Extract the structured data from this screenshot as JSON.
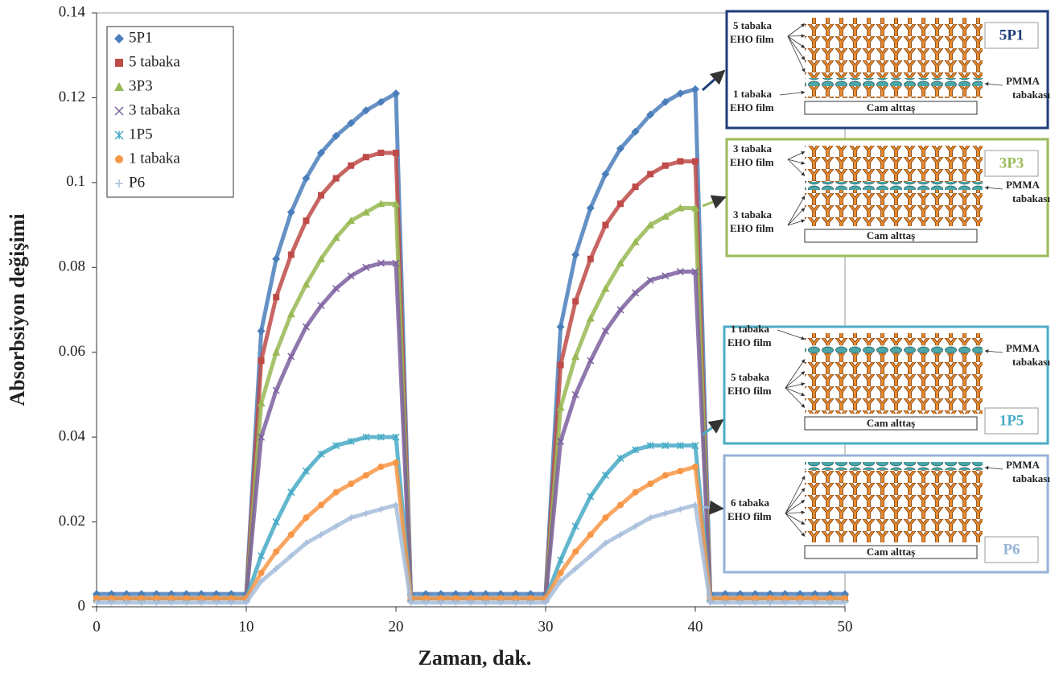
{
  "chart_data": {
    "type": "scatter",
    "x_label": "Zaman, dak.",
    "y_label": "Absorbsiyon değişimi",
    "xlim": [
      0,
      50
    ],
    "xticks": [
      0,
      10,
      20,
      30,
      40,
      50
    ],
    "ylim": [
      0,
      0.14
    ],
    "yticks": [
      0,
      0.02,
      0.04,
      0.06,
      0.08,
      0.1,
      0.12,
      0.14
    ],
    "legend": "upper left",
    "x": [
      0,
      1,
      2,
      3,
      4,
      5,
      6,
      7,
      8,
      9,
      10,
      11,
      12,
      13,
      14,
      15,
      16,
      17,
      18,
      19,
      20,
      21,
      22,
      23,
      24,
      25,
      26,
      27,
      28,
      29,
      30,
      31,
      32,
      33,
      34,
      35,
      36,
      37,
      38,
      39,
      40,
      41,
      42,
      43,
      44,
      45,
      46,
      47,
      48,
      49,
      50
    ],
    "series": [
      {
        "name": "5P1",
        "color": "#4a7ebb",
        "marker": "diamond",
        "values": [
          0.003,
          0.003,
          0.003,
          0.003,
          0.003,
          0.003,
          0.003,
          0.003,
          0.003,
          0.003,
          0.003,
          0.065,
          0.082,
          0.093,
          0.101,
          0.107,
          0.111,
          0.114,
          0.117,
          0.119,
          0.121,
          0.003,
          0.003,
          0.003,
          0.003,
          0.003,
          0.003,
          0.003,
          0.003,
          0.003,
          0.003,
          0.066,
          0.083,
          0.094,
          0.102,
          0.108,
          0.112,
          0.116,
          0.119,
          0.121,
          0.122,
          0.003,
          0.003,
          0.003,
          0.003,
          0.003,
          0.003,
          0.003,
          0.003,
          0.003,
          0.003
        ]
      },
      {
        "name": "5 tabaka",
        "color": "#be4b48",
        "marker": "square",
        "values": [
          0.002,
          0.002,
          0.002,
          0.002,
          0.002,
          0.002,
          0.002,
          0.002,
          0.002,
          0.002,
          0.002,
          0.058,
          0.073,
          0.083,
          0.091,
          0.097,
          0.101,
          0.104,
          0.106,
          0.107,
          0.107,
          0.002,
          0.002,
          0.002,
          0.002,
          0.002,
          0.002,
          0.002,
          0.002,
          0.002,
          0.002,
          0.057,
          0.072,
          0.082,
          0.09,
          0.095,
          0.099,
          0.102,
          0.104,
          0.105,
          0.105,
          0.002,
          0.002,
          0.002,
          0.002,
          0.002,
          0.002,
          0.002,
          0.002,
          0.002,
          0.002
        ]
      },
      {
        "name": "3P3",
        "color": "#98b954",
        "marker": "triangle",
        "values": [
          0.002,
          0.002,
          0.002,
          0.002,
          0.002,
          0.002,
          0.002,
          0.002,
          0.002,
          0.002,
          0.002,
          0.048,
          0.06,
          0.069,
          0.076,
          0.082,
          0.087,
          0.091,
          0.093,
          0.095,
          0.095,
          0.002,
          0.002,
          0.002,
          0.002,
          0.002,
          0.002,
          0.002,
          0.002,
          0.002,
          0.002,
          0.047,
          0.059,
          0.068,
          0.075,
          0.081,
          0.086,
          0.09,
          0.092,
          0.094,
          0.094,
          0.002,
          0.002,
          0.002,
          0.002,
          0.002,
          0.002,
          0.002,
          0.002,
          0.002,
          0.002
        ]
      },
      {
        "name": "3 tabaka",
        "color": "#7d60a0",
        "marker": "x",
        "values": [
          0.002,
          0.002,
          0.002,
          0.002,
          0.002,
          0.002,
          0.002,
          0.002,
          0.002,
          0.002,
          0.002,
          0.04,
          0.051,
          0.059,
          0.066,
          0.071,
          0.075,
          0.078,
          0.08,
          0.081,
          0.081,
          0.002,
          0.002,
          0.002,
          0.002,
          0.002,
          0.002,
          0.002,
          0.002,
          0.002,
          0.002,
          0.039,
          0.05,
          0.058,
          0.065,
          0.07,
          0.074,
          0.077,
          0.078,
          0.079,
          0.079,
          0.002,
          0.002,
          0.002,
          0.002,
          0.002,
          0.002,
          0.002,
          0.002,
          0.002,
          0.002
        ]
      },
      {
        "name": "1P5",
        "color": "#46aac5",
        "marker": "asterisk",
        "values": [
          0.002,
          0.002,
          0.002,
          0.002,
          0.002,
          0.002,
          0.002,
          0.002,
          0.002,
          0.002,
          0.002,
          0.012,
          0.02,
          0.027,
          0.032,
          0.036,
          0.038,
          0.039,
          0.04,
          0.04,
          0.04,
          0.002,
          0.002,
          0.002,
          0.002,
          0.002,
          0.002,
          0.002,
          0.002,
          0.002,
          0.002,
          0.011,
          0.019,
          0.026,
          0.031,
          0.035,
          0.037,
          0.038,
          0.038,
          0.038,
          0.038,
          0.002,
          0.002,
          0.002,
          0.002,
          0.002,
          0.002,
          0.002,
          0.002,
          0.002,
          0.002
        ]
      },
      {
        "name": "1 tabaka",
        "color": "#f79646",
        "marker": "circle",
        "values": [
          0.002,
          0.002,
          0.002,
          0.002,
          0.002,
          0.002,
          0.002,
          0.002,
          0.002,
          0.002,
          0.002,
          0.008,
          0.013,
          0.017,
          0.021,
          0.024,
          0.027,
          0.029,
          0.031,
          0.033,
          0.034,
          0.002,
          0.002,
          0.002,
          0.002,
          0.002,
          0.002,
          0.002,
          0.002,
          0.002,
          0.002,
          0.008,
          0.013,
          0.017,
          0.021,
          0.024,
          0.027,
          0.029,
          0.031,
          0.032,
          0.033,
          0.002,
          0.002,
          0.002,
          0.002,
          0.002,
          0.002,
          0.002,
          0.002,
          0.002,
          0.002
        ]
      },
      {
        "name": "P6",
        "color": "#a6bddb",
        "marker": "plus",
        "values": [
          0.001,
          0.001,
          0.001,
          0.001,
          0.001,
          0.001,
          0.001,
          0.001,
          0.001,
          0.001,
          0.001,
          0.006,
          0.009,
          0.012,
          0.015,
          0.017,
          0.019,
          0.021,
          0.022,
          0.023,
          0.024,
          0.001,
          0.001,
          0.001,
          0.001,
          0.001,
          0.001,
          0.001,
          0.001,
          0.001,
          0.001,
          0.006,
          0.009,
          0.012,
          0.015,
          0.017,
          0.019,
          0.021,
          0.022,
          0.023,
          0.024,
          0.001,
          0.001,
          0.001,
          0.001,
          0.001,
          0.001,
          0.001,
          0.001,
          0.001,
          0.001
        ]
      }
    ]
  },
  "insets": [
    {
      "label": "5P1",
      "color": "#1f3d7a",
      "notes": [
        [
          "5 tabaka",
          "EHO film"
        ],
        [
          "1 tabaka",
          "EHO film"
        ]
      ],
      "pmma": [
        "PMMA",
        "tabakası"
      ],
      "substrate": "Cam alttaş"
    },
    {
      "label": "3P3",
      "color": "#9bbb59",
      "notes": [
        [
          "3 tabaka",
          "EHO film"
        ],
        [
          "3 tabaka",
          "EHO film"
        ]
      ],
      "pmma": [
        "PMMA",
        "tabakası"
      ],
      "substrate": "Cam alttaş"
    },
    {
      "label": "1P5",
      "color": "#4bacc6",
      "notes": [
        [
          "1 tabaka",
          "EHO film"
        ],
        [
          "5 tabaka",
          "EHO film"
        ]
      ],
      "pmma": [
        "PMMA",
        "tabakası"
      ],
      "substrate": "Cam alttaş"
    },
    {
      "label": "P6",
      "color": "#95b3d7",
      "notes": [
        [
          "6 tabaka",
          "EHO film"
        ]
      ],
      "pmma": [
        "PMMA",
        "tabakası"
      ],
      "substrate": "Cam alttaş"
    }
  ]
}
